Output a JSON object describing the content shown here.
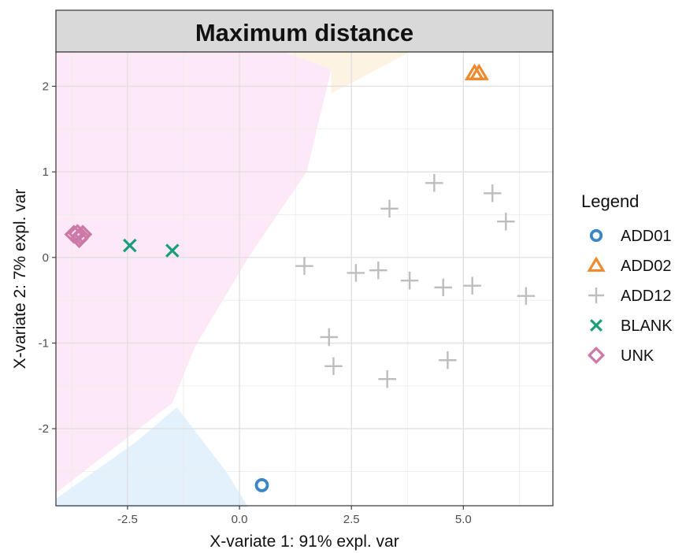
{
  "chart_data": {
    "type": "scatter",
    "title": "Maximum distance",
    "xlabel": "X-variate 1: 91% expl. var",
    "ylabel": "X-variate 2: 7% expl. var",
    "xlim": [
      -4.1,
      7.0
    ],
    "ylim": [
      -2.9,
      2.4
    ],
    "x_ticks": [
      -2.5,
      0.0,
      2.5,
      5.0
    ],
    "x_tick_labels": [
      "-2.5",
      "0.0",
      "2.5",
      "5.0"
    ],
    "y_ticks": [
      -2,
      -1,
      0,
      1,
      2
    ],
    "y_tick_labels": [
      "-2",
      "-1",
      "0",
      "1",
      "2"
    ],
    "grid": true,
    "legend": {
      "title": "Legend",
      "placement": "right"
    },
    "series": [
      {
        "name": "ADD01",
        "color": "#3B86C6",
        "marker": "circle",
        "points": [
          [
            0.5,
            -2.66
          ]
        ]
      },
      {
        "name": "ADD02",
        "color": "#EE8A2E",
        "marker": "triangle",
        "points": [
          [
            5.25,
            2.15
          ],
          [
            5.35,
            2.15
          ]
        ]
      },
      {
        "name": "ADD12",
        "color": "#BDBDBD",
        "marker": "plus",
        "points": [
          [
            1.45,
            -0.1
          ],
          [
            2.6,
            -0.18
          ],
          [
            3.1,
            -0.15
          ],
          [
            3.8,
            -0.27
          ],
          [
            4.55,
            -0.35
          ],
          [
            5.2,
            -0.33
          ],
          [
            6.4,
            -0.45
          ],
          [
            3.35,
            0.57
          ],
          [
            4.35,
            0.87
          ],
          [
            5.65,
            0.75
          ],
          [
            5.95,
            0.42
          ],
          [
            2.0,
            -0.93
          ],
          [
            2.1,
            -1.27
          ],
          [
            3.3,
            -1.42
          ],
          [
            4.65,
            -1.2
          ]
        ]
      },
      {
        "name": "BLANK",
        "color": "#1B9E77",
        "marker": "x",
        "points": [
          [
            -2.45,
            0.14
          ],
          [
            -1.5,
            0.08
          ]
        ]
      },
      {
        "name": "UNK",
        "color": "#CC79A7",
        "marker": "diamond",
        "points": [
          [
            -3.7,
            0.27
          ],
          [
            -3.62,
            0.28
          ],
          [
            -3.55,
            0.25
          ],
          [
            -3.5,
            0.27
          ],
          [
            -3.58,
            0.22
          ]
        ]
      }
    ],
    "background_regions": [
      {
        "class": "UNK",
        "color": "#FCE8F6",
        "polygon": [
          [
            -4.1,
            2.4
          ],
          [
            -2.0,
            2.4
          ],
          [
            1.0,
            2.4
          ],
          [
            2.05,
            2.2
          ],
          [
            1.5,
            1.0
          ],
          [
            0.2,
            0.0
          ],
          [
            -1.0,
            -1.05
          ],
          [
            -1.5,
            -1.7
          ],
          [
            -4.1,
            -2.75
          ]
        ]
      },
      {
        "class": "ADD02",
        "color": "#FDF3E2",
        "polygon": [
          [
            1.0,
            2.4
          ],
          [
            3.8,
            2.4
          ],
          [
            2.55,
            2.05
          ],
          [
            2.05,
            1.92
          ],
          [
            2.05,
            2.2
          ]
        ]
      },
      {
        "class": "ADD01",
        "color": "#E3F1FC",
        "polygon": [
          [
            -4.1,
            -2.92
          ],
          [
            -4.1,
            -2.82
          ],
          [
            -2.3,
            -2.15
          ],
          [
            -1.4,
            -1.75
          ],
          [
            -0.3,
            -2.5
          ],
          [
            0.2,
            -2.92
          ]
        ]
      }
    ]
  }
}
